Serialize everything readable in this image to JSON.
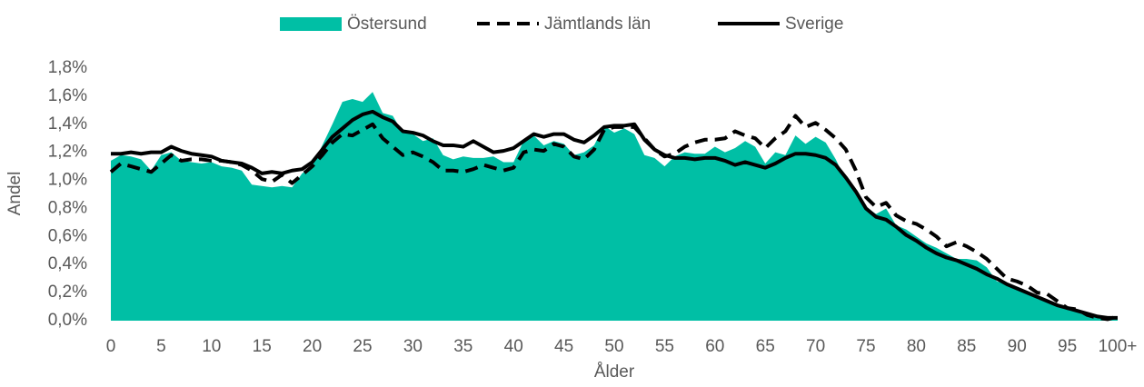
{
  "chart_data": {
    "type": "line",
    "x_label": "Ålder",
    "y_label": "Andel",
    "categories": [
      "0",
      null,
      null,
      null,
      null,
      "5",
      null,
      null,
      null,
      null,
      "10",
      null,
      null,
      null,
      null,
      "15",
      null,
      null,
      null,
      null,
      "20",
      null,
      null,
      null,
      null,
      "25",
      null,
      null,
      null,
      null,
      "30",
      null,
      null,
      null,
      null,
      "35",
      null,
      null,
      null,
      null,
      "40",
      null,
      null,
      null,
      null,
      "45",
      null,
      null,
      null,
      null,
      "50",
      null,
      null,
      null,
      null,
      "55",
      null,
      null,
      null,
      null,
      "60",
      null,
      null,
      null,
      null,
      "65",
      null,
      null,
      null,
      null,
      "70",
      null,
      null,
      null,
      null,
      "75",
      null,
      null,
      null,
      null,
      "80",
      null,
      null,
      null,
      null,
      "85",
      null,
      null,
      null,
      null,
      "90",
      null,
      null,
      null,
      null,
      "95",
      null,
      null,
      null,
      null,
      "100+"
    ],
    "ylim": [
      0,
      1.8
    ],
    "yticks": [
      {
        "value": 0,
        "label": "0,0%"
      },
      {
        "value": 0.2,
        "label": "0,2%"
      },
      {
        "value": 0.4,
        "label": "0,4%"
      },
      {
        "value": 0.6,
        "label": "0,6%"
      },
      {
        "value": 0.8,
        "label": "0,8%"
      },
      {
        "value": 1.0,
        "label": "1,0%"
      },
      {
        "value": 1.2,
        "label": "1,2%"
      },
      {
        "value": 1.4,
        "label": "1,4%"
      },
      {
        "value": 1.6,
        "label": "1,6%"
      },
      {
        "value": 1.8,
        "label": "1,8%"
      }
    ],
    "legend": "top",
    "series": [
      {
        "name": "Östersund",
        "style": "area",
        "color": "#00bfa5",
        "values": [
          1.14,
          1.18,
          1.17,
          1.15,
          1.07,
          1.18,
          1.2,
          1.14,
          1.13,
          1.12,
          1.13,
          1.1,
          1.09,
          1.07,
          0.97,
          0.96,
          0.95,
          0.96,
          0.95,
          1.05,
          1.1,
          1.25,
          1.4,
          1.56,
          1.58,
          1.56,
          1.63,
          1.48,
          1.46,
          1.34,
          1.33,
          1.28,
          1.3,
          1.18,
          1.15,
          1.17,
          1.16,
          1.16,
          1.17,
          1.13,
          1.13,
          1.28,
          1.32,
          1.25,
          1.28,
          1.26,
          1.18,
          1.2,
          1.25,
          1.39,
          1.34,
          1.37,
          1.33,
          1.18,
          1.16,
          1.1,
          1.17,
          1.2,
          1.19,
          1.19,
          1.24,
          1.2,
          1.23,
          1.28,
          1.24,
          1.12,
          1.2,
          1.18,
          1.32,
          1.26,
          1.31,
          1.27,
          1.15,
          1.0,
          0.9,
          0.81,
          0.76,
          0.8,
          0.68,
          0.65,
          0.6,
          0.55,
          0.52,
          0.48,
          0.44,
          0.44,
          0.43,
          0.38,
          0.28,
          0.26,
          0.24,
          0.2,
          0.17,
          0.13,
          0.1,
          0.08,
          0.06,
          0.03,
          0.02,
          0.01,
          0.01
        ]
      },
      {
        "name": "Jämtlands län",
        "style": "dashed",
        "color": "#000000",
        "values": [
          1.06,
          1.12,
          1.1,
          1.08,
          1.06,
          1.12,
          1.18,
          1.14,
          1.15,
          1.15,
          1.14,
          1.14,
          1.13,
          1.11,
          1.07,
          1.01,
          0.99,
          1.04,
          0.98,
          1.04,
          1.1,
          1.18,
          1.27,
          1.33,
          1.32,
          1.36,
          1.4,
          1.3,
          1.24,
          1.18,
          1.2,
          1.17,
          1.13,
          1.07,
          1.07,
          1.06,
          1.08,
          1.11,
          1.09,
          1.07,
          1.09,
          1.2,
          1.22,
          1.21,
          1.26,
          1.24,
          1.17,
          1.15,
          1.22,
          1.36,
          1.38,
          1.38,
          1.38,
          1.3,
          1.22,
          1.17,
          1.19,
          1.24,
          1.27,
          1.29,
          1.29,
          1.3,
          1.35,
          1.32,
          1.3,
          1.23,
          1.3,
          1.35,
          1.46,
          1.38,
          1.41,
          1.36,
          1.3,
          1.22,
          1.07,
          0.88,
          0.81,
          0.84,
          0.75,
          0.71,
          0.69,
          0.65,
          0.6,
          0.53,
          0.56,
          0.53,
          0.49,
          0.44,
          0.37,
          0.3,
          0.28,
          0.25,
          0.2,
          0.19,
          0.14,
          0.09,
          0.08,
          0.04,
          0.02,
          0.01,
          0.03
        ]
      },
      {
        "name": "Sverige",
        "style": "solid",
        "color": "#000000",
        "values": [
          1.19,
          1.19,
          1.2,
          1.19,
          1.2,
          1.2,
          1.24,
          1.21,
          1.19,
          1.18,
          1.17,
          1.14,
          1.13,
          1.12,
          1.09,
          1.05,
          1.06,
          1.05,
          1.07,
          1.08,
          1.13,
          1.22,
          1.31,
          1.37,
          1.43,
          1.47,
          1.49,
          1.45,
          1.42,
          1.35,
          1.34,
          1.32,
          1.28,
          1.25,
          1.25,
          1.24,
          1.28,
          1.24,
          1.2,
          1.21,
          1.23,
          1.28,
          1.33,
          1.31,
          1.33,
          1.33,
          1.29,
          1.27,
          1.32,
          1.38,
          1.39,
          1.39,
          1.4,
          1.29,
          1.22,
          1.18,
          1.16,
          1.16,
          1.15,
          1.16,
          1.16,
          1.14,
          1.11,
          1.13,
          1.11,
          1.09,
          1.12,
          1.16,
          1.19,
          1.19,
          1.18,
          1.16,
          1.11,
          1.02,
          0.92,
          0.8,
          0.74,
          0.72,
          0.67,
          0.61,
          0.57,
          0.52,
          0.48,
          0.45,
          0.43,
          0.4,
          0.37,
          0.33,
          0.3,
          0.26,
          0.23,
          0.2,
          0.17,
          0.14,
          0.11,
          0.09,
          0.07,
          0.05,
          0.03,
          0.02,
          0.02
        ]
      }
    ]
  }
}
